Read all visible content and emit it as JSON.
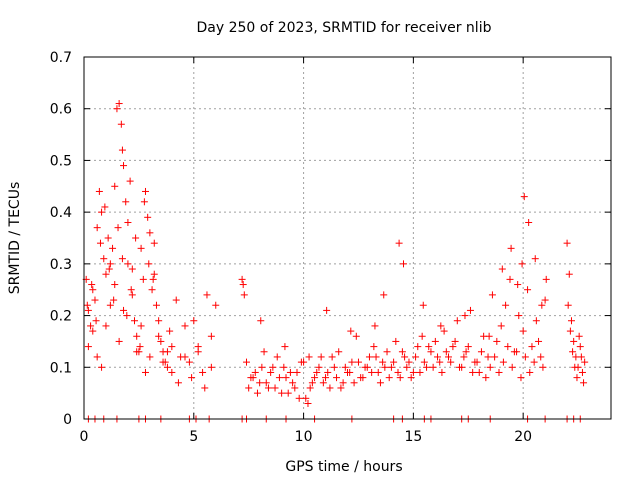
{
  "chart_data": {
    "type": "scatter",
    "title": "Day 250 of 2023, SRMTID for receiver nlib",
    "xlabel": "GPS time / hours",
    "ylabel": "SRMTID / TECUs",
    "xlim": [
      0,
      24
    ],
    "ylim": [
      0,
      0.7
    ],
    "xticks": [
      0,
      5,
      10,
      15,
      20
    ],
    "yticks": [
      0,
      0.1,
      0.2,
      0.3,
      0.4,
      0.5,
      0.6,
      0.7
    ],
    "xtick_labels": [
      "0",
      "5",
      "10",
      "15",
      "20"
    ],
    "ytick_labels": [
      "0",
      "0.1",
      "0.2",
      "0.3",
      "0.4",
      "0.5",
      "0.6",
      "0.7"
    ],
    "grid": true,
    "marker": "+",
    "color": "#ff0000",
    "series": [
      {
        "name": "SRMTID",
        "x": [
          0.1,
          0.2,
          0.3,
          0.4,
          0.5,
          0.6,
          0.7,
          0.8,
          0.9,
          1.0,
          1.1,
          1.2,
          1.3,
          1.4,
          1.5,
          1.6,
          1.7,
          1.75,
          1.8,
          1.9,
          2.0,
          2.1,
          2.2,
          2.3,
          2.4,
          2.5,
          2.6,
          2.7,
          2.8,
          2.9,
          3.0,
          3.1,
          3.2,
          3.3,
          3.4,
          3.5,
          3.6,
          3.7,
          3.8,
          3.9,
          4.0,
          4.2,
          4.4,
          4.6,
          4.8,
          5.0,
          5.2,
          5.4,
          5.6,
          5.8,
          6.0,
          0.2,
          0.4,
          0.6,
          0.8,
          1.0,
          1.2,
          1.4,
          1.6,
          1.8,
          2.0,
          2.2,
          2.4,
          2.6,
          2.8,
          3.0,
          3.2,
          3.4,
          3.6,
          3.8,
          4.0,
          4.3,
          4.6,
          4.9,
          5.2,
          5.5,
          5.8,
          0.15,
          0.35,
          0.55,
          0.75,
          0.95,
          1.15,
          1.35,
          1.55,
          1.75,
          1.95,
          2.15,
          2.35,
          2.55,
          2.75,
          2.95,
          3.15,
          7.2,
          7.3,
          7.4,
          7.6,
          7.8,
          8.0,
          8.2,
          8.4,
          8.6,
          8.8,
          9.0,
          9.2,
          9.4,
          9.6,
          9.8,
          10.0,
          10.2,
          10.4,
          10.6,
          10.8,
          11.0,
          11.2,
          11.4,
          11.6,
          11.8,
          12.0,
          12.2,
          12.4,
          12.6,
          12.8,
          13.0,
          13.2,
          13.4,
          13.6,
          13.8,
          14.0,
          14.2,
          14.4,
          14.6,
          14.8,
          15.0,
          15.2,
          15.4,
          15.6,
          15.8,
          16.0,
          16.2,
          16.4,
          16.6,
          16.8,
          17.0,
          17.2,
          17.4,
          17.6,
          17.8,
          18.0,
          18.2,
          18.4,
          18.6,
          18.8,
          19.0,
          19.2,
          19.4,
          19.6,
          19.8,
          20.0,
          20.2,
          20.4,
          20.6,
          20.8,
          21.0,
          7.5,
          7.7,
          7.9,
          8.1,
          8.3,
          8.5,
          8.7,
          8.9,
          9.1,
          9.3,
          9.5,
          9.7,
          9.9,
          10.1,
          10.3,
          10.5,
          10.7,
          10.9,
          11.1,
          11.3,
          11.5,
          11.7,
          11.9,
          12.1,
          12.3,
          12.5,
          12.7,
          12.9,
          13.1,
          13.3,
          13.5,
          13.7,
          13.9,
          14.1,
          14.3,
          14.5,
          14.7,
          14.9,
          15.1,
          15.3,
          15.5,
          15.7,
          15.9,
          16.1,
          16.3,
          16.5,
          16.7,
          16.9,
          17.1,
          17.3,
          17.5,
          17.7,
          17.9,
          18.1,
          18.3,
          18.5,
          18.7,
          18.9,
          19.1,
          19.3,
          19.5,
          19.7,
          19.9,
          20.1,
          20.3,
          20.5,
          20.7,
          20.9,
          7.25,
          8.05,
          9.15,
          10.25,
          11.05,
          12.15,
          13.25,
          13.65,
          14.35,
          14.55,
          15.45,
          16.25,
          17.35,
          18.45,
          19.05,
          19.45,
          19.75,
          19.95,
          20.05,
          20.25,
          20.55,
          20.85,
          21.05,
          22.0,
          22.1,
          22.2,
          22.3,
          22.4,
          22.5,
          22.6,
          22.7,
          22.8,
          22.05,
          22.25,
          22.45,
          22.65,
          22.15,
          22.35,
          22.55,
          22.75,
          0.2,
          0.5,
          0.9,
          1.5,
          2.5,
          2.8,
          3.5,
          4.8,
          5.1,
          5.7,
          7.2,
          7.4,
          8.3,
          9.2,
          10.5,
          12.2,
          14.1,
          14.5,
          15.5,
          15.8,
          17.2,
          17.5,
          18.5,
          20.2,
          21.0,
          22.0,
          22.3,
          22.6
        ],
        "y": [
          0.27,
          0.21,
          0.18,
          0.25,
          0.23,
          0.37,
          0.44,
          0.4,
          0.31,
          0.28,
          0.35,
          0.3,
          0.33,
          0.45,
          0.6,
          0.61,
          0.57,
          0.52,
          0.49,
          0.42,
          0.38,
          0.46,
          0.29,
          0.19,
          0.16,
          0.13,
          0.33,
          0.27,
          0.44,
          0.39,
          0.36,
          0.25,
          0.34,
          0.22,
          0.19,
          0.15,
          0.13,
          0.11,
          0.1,
          0.17,
          0.14,
          0.23,
          0.12,
          0.18,
          0.11,
          0.19,
          0.14,
          0.09,
          0.24,
          0.16,
          0.22,
          0.14,
          0.17,
          0.12,
          0.1,
          0.18,
          0.22,
          0.26,
          0.15,
          0.21,
          0.3,
          0.24,
          0.13,
          0.18,
          0.09,
          0.12,
          0.28,
          0.16,
          0.11,
          0.13,
          0.09,
          0.07,
          0.12,
          0.08,
          0.13,
          0.06,
          0.1,
          0.22,
          0.26,
          0.19,
          0.34,
          0.41,
          0.29,
          0.23,
          0.37,
          0.31,
          0.2,
          0.25,
          0.35,
          0.14,
          0.42,
          0.3,
          0.27,
          0.27,
          0.24,
          0.11,
          0.08,
          0.09,
          0.07,
          0.13,
          0.06,
          0.1,
          0.12,
          0.05,
          0.08,
          0.09,
          0.06,
          0.04,
          0.11,
          0.03,
          0.07,
          0.09,
          0.12,
          0.08,
          0.06,
          0.1,
          0.13,
          0.07,
          0.09,
          0.11,
          0.16,
          0.08,
          0.1,
          0.12,
          0.14,
          0.09,
          0.11,
          0.13,
          0.1,
          0.15,
          0.08,
          0.12,
          0.11,
          0.09,
          0.14,
          0.16,
          0.1,
          0.13,
          0.15,
          0.11,
          0.17,
          0.12,
          0.14,
          0.19,
          0.1,
          0.13,
          0.21,
          0.11,
          0.09,
          0.16,
          0.12,
          0.24,
          0.15,
          0.18,
          0.22,
          0.27,
          0.13,
          0.2,
          0.17,
          0.25,
          0.14,
          0.19,
          0.12,
          0.23,
          0.06,
          0.08,
          0.05,
          0.1,
          0.07,
          0.09,
          0.06,
          0.08,
          0.1,
          0.05,
          0.07,
          0.09,
          0.11,
          0.04,
          0.06,
          0.08,
          0.1,
          0.07,
          0.09,
          0.12,
          0.08,
          0.06,
          0.1,
          0.09,
          0.07,
          0.11,
          0.08,
          0.1,
          0.09,
          0.12,
          0.07,
          0.1,
          0.08,
          0.11,
          0.09,
          0.13,
          0.1,
          0.08,
          0.12,
          0.09,
          0.11,
          0.14,
          0.1,
          0.12,
          0.09,
          0.13,
          0.11,
          0.15,
          0.1,
          0.12,
          0.14,
          0.09,
          0.11,
          0.13,
          0.08,
          0.1,
          0.12,
          0.09,
          0.11,
          0.14,
          0.1,
          0.13,
          0.08,
          0.12,
          0.09,
          0.11,
          0.15,
          0.1,
          0.26,
          0.19,
          0.14,
          0.12,
          0.21,
          0.17,
          0.18,
          0.24,
          0.34,
          0.3,
          0.22,
          0.18,
          0.2,
          0.16,
          0.29,
          0.33,
          0.26,
          0.3,
          0.43,
          0.38,
          0.31,
          0.22,
          0.27,
          0.34,
          0.28,
          0.19,
          0.15,
          0.12,
          0.1,
          0.14,
          0.09,
          0.11,
          0.22,
          0.13,
          0.08,
          0.12,
          0.17,
          0.1,
          0.16,
          0.07,
          0.0,
          0.0,
          0.0,
          0.0,
          0.0,
          0.0,
          0.0,
          0.0,
          0.0,
          0.0,
          0.0,
          0.0,
          0.0,
          0.0,
          0.0,
          0.0,
          0.0,
          0.0,
          0.0,
          0.0,
          0.0,
          0.0,
          0.0,
          0.0,
          0.0,
          0.0,
          0.0,
          0.0
        ]
      }
    ]
  }
}
